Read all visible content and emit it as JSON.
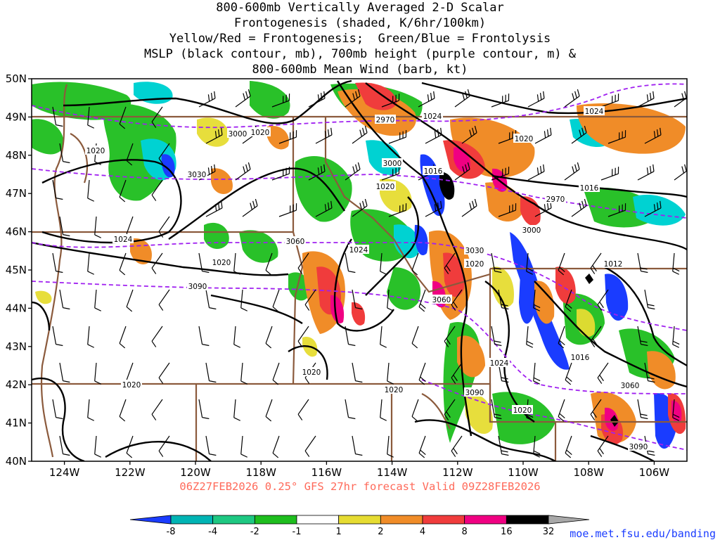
{
  "title_lines": [
    "800-600mb Vertically Averaged 2-D Scalar",
    "Frontogenesis (shaded, K/6hr/100km)",
    "Yellow/Red = Frontogenesis;  Green/Blue = Frontolysis",
    "MSLP (black contour, mb), 700mb height (purple contour, m) &",
    "800-600mb Mean Wind (barb, kt)"
  ],
  "valid_line": "06Z27FEB2026 0.25° GFS 27hr forecast Valid 09Z28FEB2026",
  "credit": "moe.met.fsu.edu/banding",
  "map": {
    "lon_range": [
      -125,
      -105
    ],
    "lat_range": [
      40,
      50
    ],
    "lon_ticks": [
      "124W",
      "122W",
      "120W",
      "118W",
      "116W",
      "114W",
      "112W",
      "110W",
      "108W",
      "106W"
    ],
    "lat_ticks": [
      "50N",
      "49N",
      "48N",
      "47N",
      "46N",
      "45N",
      "44N",
      "43N",
      "42N",
      "41N",
      "40N"
    ],
    "mslp_labels": [
      "1020",
      "1020",
      "1024",
      "1024",
      "1024",
      "1020",
      "1016",
      "1024",
      "1020",
      "1020",
      "1020",
      "1020",
      "1016",
      "1012",
      "1016",
      "1024",
      "1020",
      "1020",
      "1020"
    ],
    "height_labels": [
      "2970",
      "3000",
      "3030",
      "3000",
      "3060",
      "3030",
      "2970",
      "3000",
      "3060",
      "3090",
      "3090",
      "3060",
      "3090"
    ],
    "colors": {
      "frontolysis_strong": "#1a3cff",
      "frontolysis": "#00d2d2",
      "frontolysis_weak": "#1ebe1e",
      "frontogenesis_weak": "#e6dc32",
      "frontogenesis": "#f08c28",
      "frontogenesis_strong": "#f03c3c",
      "frontogenesis_very_strong": "#f00082",
      "extreme": "#000000",
      "mslp_contour": "#000000",
      "height_contour": "#a020f0",
      "borders": "#8b5a3c"
    }
  },
  "colorbar": {
    "labels": [
      "-8",
      "-4",
      "-2",
      "-1",
      "1",
      "2",
      "4",
      "8",
      "16",
      "32"
    ],
    "colors": [
      "#1a3cff",
      "#00b4b4",
      "#1ec882",
      "#1ebe1e",
      "#ffffff",
      "#e6dc32",
      "#f08c28",
      "#f03c3c",
      "#f00082",
      "#000000",
      "#a8a8a8"
    ]
  }
}
